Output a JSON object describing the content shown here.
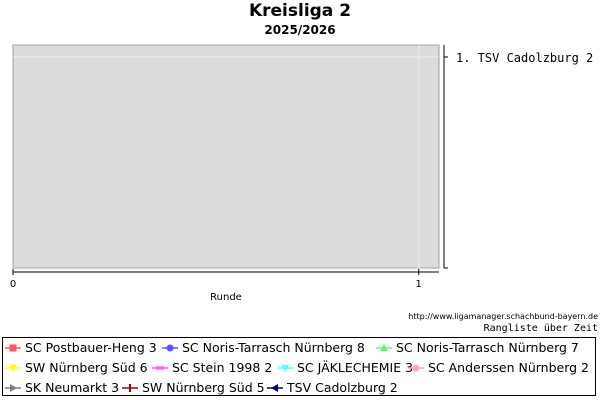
{
  "chart_data": {
    "type": "line",
    "title": "Kreisliga 2",
    "subtitle": "2025/2026",
    "xlabel": "Runde",
    "ylabel": "",
    "x_ticks": [
      "0",
      "1"
    ],
    "xlim": [
      0,
      1.05
    ],
    "y_inverted": true,
    "grid": true,
    "rank_labels": [
      "1. TSV Cadolzburg 2"
    ],
    "series": [
      {
        "name": "SC Postbauer-Heng 3",
        "color": "#ff5555",
        "marker": "square",
        "values": []
      },
      {
        "name": "SC Noris-Tarrasch Nürnberg 8",
        "color": "#5555ff",
        "marker": "circle",
        "values": []
      },
      {
        "name": "SC Noris-Tarrasch Nürnberg 7",
        "color": "#55ff55",
        "marker": "triangle-up",
        "values": []
      },
      {
        "name": "SW Nürnberg Süd 6",
        "color": "#ffff00",
        "marker": "triangle-down",
        "values": []
      },
      {
        "name": "SC Stein 1998 2",
        "color": "#ff55ff",
        "marker": "dash",
        "values": []
      },
      {
        "name": "SC JÄKLECHEMIE 3",
        "color": "#55ffff",
        "marker": "triangle-down",
        "values": []
      },
      {
        "name": "SC Anderssen Nürnberg 2",
        "color": "#ffaaaa",
        "marker": "circle",
        "values": []
      },
      {
        "name": "SK Neumarkt 3",
        "color": "#808080",
        "marker": "triangle-right",
        "values": []
      },
      {
        "name": "SW Nürnberg Süd 5",
        "color": "#aa0000",
        "marker": "plus",
        "values": []
      },
      {
        "name": "TSV Cadolzburg 2",
        "color": "#000080",
        "marker": "triangle-left",
        "values": []
      }
    ]
  },
  "footer": {
    "source_url": "http://www.ligamanager.schachbund-bayern.de",
    "rangliste": "Rangliste über Zeit"
  }
}
